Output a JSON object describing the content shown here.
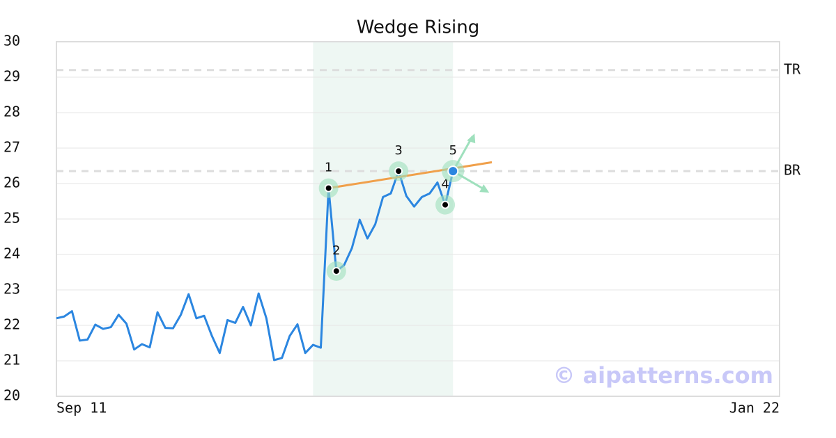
{
  "chart_data": {
    "type": "line",
    "title": "Wedge Rising",
    "x": [
      0,
      1,
      2,
      3,
      4,
      5,
      6,
      7,
      8,
      9,
      10,
      11,
      12,
      13,
      14,
      15,
      16,
      17,
      18,
      19,
      20,
      21,
      22,
      23,
      24,
      25,
      26,
      27,
      28,
      29,
      30,
      31,
      32,
      33,
      34,
      35,
      36,
      37,
      38,
      39,
      40,
      41,
      42,
      43,
      44,
      45,
      46,
      47,
      48,
      49,
      50,
      51
    ],
    "values": [
      22.2,
      22.25,
      22.4,
      21.57,
      21.6,
      22.02,
      21.9,
      21.95,
      22.3,
      22.05,
      21.32,
      21.47,
      21.38,
      22.37,
      21.93,
      21.92,
      22.3,
      22.88,
      22.2,
      22.27,
      21.7,
      21.22,
      22.15,
      22.07,
      22.52,
      22.0,
      22.9,
      22.2,
      21.02,
      21.08,
      21.7,
      22.03,
      21.22,
      21.45,
      21.37,
      25.87,
      23.53,
      23.7,
      24.18,
      24.98,
      24.45,
      24.85,
      25.62,
      25.72,
      26.35,
      25.65,
      25.35,
      25.62,
      25.72,
      26.03,
      25.4,
      26.35
    ],
    "color": "#2b86e0",
    "xlim": [
      0,
      93
    ],
    "xticks": [
      {
        "value": 0,
        "label": "Sep 11"
      },
      {
        "value": 93,
        "label": "Jan 22"
      }
    ],
    "ylim": [
      20,
      30
    ],
    "yticks": [
      20,
      21,
      22,
      23,
      24,
      25,
      26,
      27,
      28,
      29,
      30
    ],
    "grid": true,
    "highlight_range": [
      33,
      51
    ],
    "levels": [
      {
        "label": "TR",
        "value": 29.2
      },
      {
        "label": "BR",
        "value": 26.35
      }
    ],
    "trend_line": {
      "x": [
        35,
        56
      ],
      "y": [
        25.87,
        26.6
      ],
      "color": "#f0a04b"
    },
    "points": [
      {
        "label": "1",
        "x": 35,
        "y": 25.87,
        "color": "#000000"
      },
      {
        "label": "2",
        "x": 36,
        "y": 23.53,
        "color": "#000000"
      },
      {
        "label": "3",
        "x": 44,
        "y": 26.35,
        "color": "#000000"
      },
      {
        "label": "4",
        "x": 50,
        "y": 25.4,
        "color": "#000000"
      },
      {
        "label": "5",
        "x": 51,
        "y": 26.35,
        "color": "#2b86e0"
      }
    ],
    "watermark": "© aipatterns.com"
  }
}
